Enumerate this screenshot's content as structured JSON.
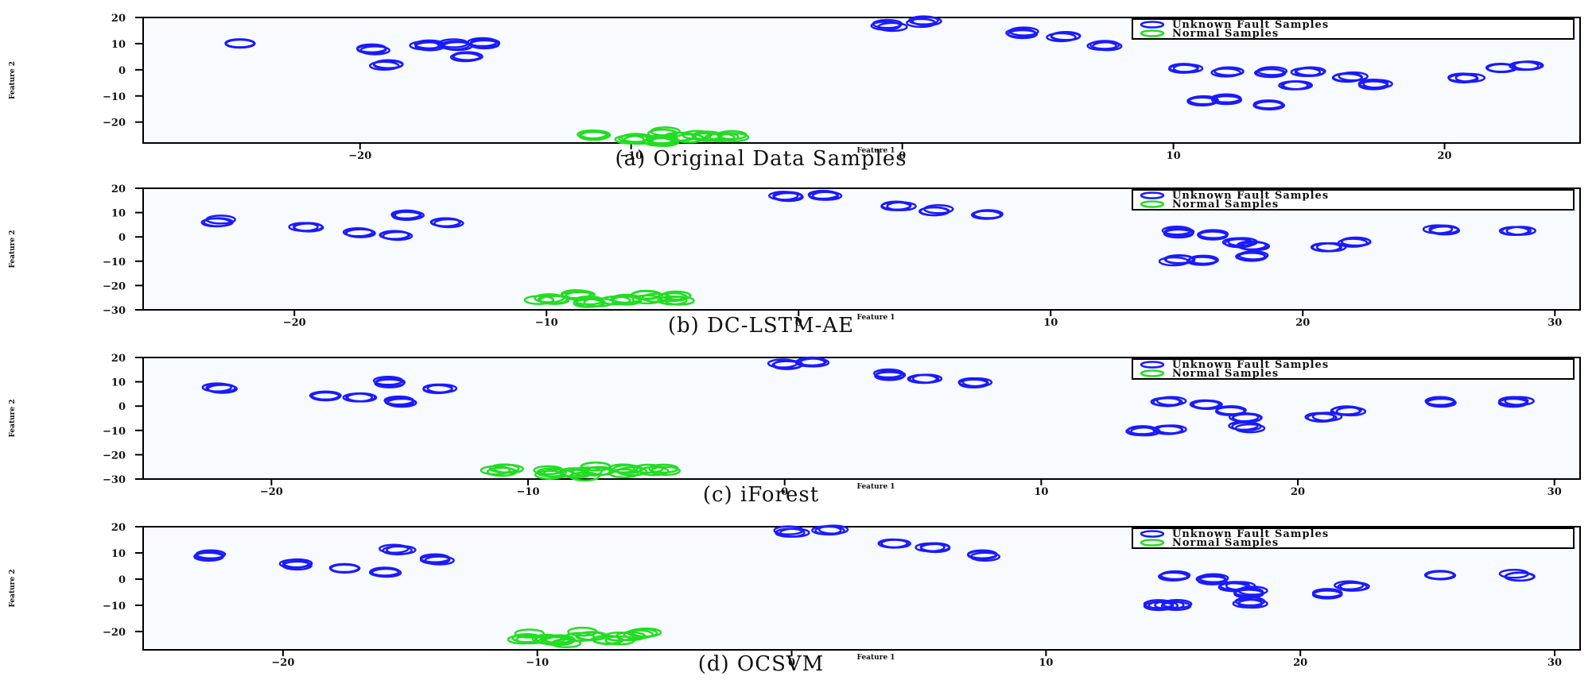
{
  "colors": {
    "fault": "#1a1aff",
    "normal": "#22dd22",
    "plot_bg": "#f7fbff",
    "axis": "#000000"
  },
  "legend_placement": "top-right",
  "chart_data": [
    {
      "type": "scatter",
      "caption": "(a)  Original Data Samples",
      "xlabel": "Feature 1",
      "ylabel": "Feature 2",
      "xlim": [
        -28,
        25
      ],
      "ylim": [
        -28,
        20
      ],
      "xticks": [
        -20,
        -10,
        0,
        10,
        20
      ],
      "xtick_labels": [
        "−20",
        "−10",
        "0",
        "10",
        "20"
      ],
      "yticks": [
        20,
        10,
        0,
        -10,
        -20
      ],
      "ytick_labels": [
        "20",
        "10",
        "0",
        "−10",
        "−20"
      ],
      "series": [
        {
          "name": "Unknown Fault Samples",
          "color": "#1a1aff",
          "points": [
            [
              -24.5,
              9.8
            ],
            [
              -19.5,
              7.8
            ],
            [
              -17.5,
              9.2
            ],
            [
              -16.5,
              9.6
            ],
            [
              -15.5,
              10.2
            ],
            [
              -16,
              5
            ],
            [
              -19,
              2
            ],
            [
              -0.5,
              17
            ],
            [
              0.8,
              18.5
            ],
            [
              4.5,
              14.2
            ],
            [
              6,
              12.5
            ],
            [
              7.5,
              9.5
            ],
            [
              10.5,
              0.5
            ],
            [
              12,
              -0.5
            ],
            [
              13.5,
              -1
            ],
            [
              15,
              -1.2
            ],
            [
              14.5,
              -6.5
            ],
            [
              12,
              -11
            ],
            [
              13.5,
              -13.5
            ],
            [
              11,
              -12
            ],
            [
              16.5,
              -2.5
            ],
            [
              17.5,
              -5.5
            ],
            [
              20.8,
              -2.8
            ],
            [
              22,
              0.5
            ],
            [
              23,
              1.2
            ]
          ]
        },
        {
          "name": "Normal Samples",
          "color": "#22dd22",
          "points": [
            [
              -11.5,
              -25
            ],
            [
              -10,
              -26
            ],
            [
              -8.5,
              -24.5
            ],
            [
              -7.5,
              -26
            ],
            [
              -6.5,
              -25
            ],
            [
              -9,
              -27
            ]
          ]
        }
      ]
    },
    {
      "type": "scatter",
      "caption": "(b)  DC-LSTM-AE",
      "xlabel": "Feature 1",
      "ylabel": "Feature 2",
      "xlim": [
        -26,
        31
      ],
      "ylim": [
        -30,
        20
      ],
      "xticks": [
        -20,
        -10,
        0,
        10,
        20,
        30
      ],
      "xtick_labels": [
        "−20",
        "−10",
        "0",
        "10",
        "20",
        "30"
      ],
      "yticks": [
        20,
        10,
        0,
        -10,
        -20,
        -30
      ],
      "ytick_labels": [
        "20",
        "10",
        "0",
        "−10",
        "−20",
        "−30"
      ],
      "series": [
        {
          "name": "Unknown Fault Samples",
          "color": "#1a1aff",
          "points": [
            [
              -23,
              6.5
            ],
            [
              -19.5,
              3.5
            ],
            [
              -17.5,
              2
            ],
            [
              -16,
              1
            ],
            [
              -15.5,
              9
            ],
            [
              -14,
              6
            ],
            [
              -0.5,
              16.5
            ],
            [
              1,
              17.5
            ],
            [
              4,
              13
            ],
            [
              5.5,
              11
            ],
            [
              7.5,
              9
            ],
            [
              15,
              2
            ],
            [
              16.5,
              1
            ],
            [
              17.5,
              -2
            ],
            [
              18,
              -4
            ],
            [
              16,
              -9.5
            ],
            [
              15,
              -9.5
            ],
            [
              18,
              -8
            ],
            [
              21,
              -4.5
            ],
            [
              22,
              -2
            ],
            [
              25.5,
              3
            ],
            [
              28.5,
              3
            ]
          ]
        },
        {
          "name": "Normal Samples",
          "color": "#22dd22",
          "points": [
            [
              -10,
              -26
            ],
            [
              -8.5,
              -24
            ],
            [
              -7,
              -26
            ],
            [
              -6,
              -24.5
            ],
            [
              -5,
              -25
            ],
            [
              -8,
              -27
            ]
          ]
        }
      ]
    },
    {
      "type": "scatter",
      "caption": "(c)  iForest",
      "xlabel": "Feature 1",
      "ylabel": "Feature 2",
      "xlim": [
        -25,
        31
      ],
      "ylim": [
        -30,
        20
      ],
      "xticks": [
        -20,
        -10,
        0,
        10,
        20,
        30
      ],
      "xtick_labels": [
        "−20",
        "−10",
        "0",
        "10",
        "20",
        "30"
      ],
      "yticks": [
        20,
        10,
        0,
        -10,
        -20,
        -30
      ],
      "ytick_labels": [
        "20",
        "10",
        "0",
        "−10",
        "−20",
        "−30"
      ],
      "series": [
        {
          "name": "Unknown Fault Samples",
          "color": "#1a1aff",
          "points": [
            [
              -22,
              7.5
            ],
            [
              -18,
              4.5
            ],
            [
              -16.5,
              3
            ],
            [
              -15,
              2
            ],
            [
              -15.5,
              10
            ],
            [
              -13.5,
              7
            ],
            [
              0,
              17.5
            ],
            [
              1,
              18.5
            ],
            [
              4,
              13
            ],
            [
              5.5,
              11.5
            ],
            [
              7.5,
              9.5
            ],
            [
              15,
              1.5
            ],
            [
              16.5,
              0.5
            ],
            [
              17.5,
              -2
            ],
            [
              18,
              -4.5
            ],
            [
              15,
              -9.5
            ],
            [
              14,
              -10
            ],
            [
              18,
              -8.5
            ],
            [
              21,
              -5
            ],
            [
              22,
              -2
            ],
            [
              25.5,
              2
            ],
            [
              28.5,
              2
            ]
          ]
        },
        {
          "name": "Normal Samples",
          "color": "#22dd22",
          "points": [
            [
              -11,
              -26.5
            ],
            [
              -9,
              -27
            ],
            [
              -7.5,
              -26
            ],
            [
              -6,
              -26.5
            ],
            [
              -5,
              -27
            ],
            [
              -8,
              -28
            ]
          ]
        }
      ]
    },
    {
      "type": "scatter",
      "caption": "(d)  OCSVM",
      "xlabel": "Feature 1",
      "ylabel": "Feature 2",
      "xlim": [
        -25.5,
        31
      ],
      "ylim": [
        -27,
        20
      ],
      "xticks": [
        -20,
        -10,
        0,
        10,
        20,
        30
      ],
      "xtick_labels": [
        "−20",
        "−10",
        "0",
        "10",
        "20",
        "30"
      ],
      "yticks": [
        20,
        10,
        0,
        -10,
        -20
      ],
      "ytick_labels": [
        "20",
        "10",
        "0",
        "−10",
        "−20"
      ],
      "series": [
        {
          "name": "Unknown Fault Samples",
          "color": "#1a1aff",
          "points": [
            [
              -23,
              9
            ],
            [
              -19.5,
              5.5
            ],
            [
              -17.5,
              4
            ],
            [
              -16,
              3
            ],
            [
              -15.5,
              11
            ],
            [
              -14,
              7.5
            ],
            [
              0,
              18
            ],
            [
              1.5,
              19
            ],
            [
              4,
              13.5
            ],
            [
              5.5,
              12
            ],
            [
              7.5,
              9
            ],
            [
              15,
              1
            ],
            [
              16.5,
              0
            ],
            [
              17.5,
              -2.5
            ],
            [
              18,
              -5
            ],
            [
              15,
              -10
            ],
            [
              14.5,
              -10
            ],
            [
              18,
              -9
            ],
            [
              21,
              -5.5
            ],
            [
              22,
              -2.5
            ],
            [
              25.5,
              1.5
            ],
            [
              28.5,
              1.5
            ]
          ]
        },
        {
          "name": "Normal Samples",
          "color": "#22dd22",
          "points": [
            [
              -10.5,
              -22
            ],
            [
              -9,
              -24
            ],
            [
              -8,
              -21
            ],
            [
              -7,
              -23
            ],
            [
              -6,
              -21.5
            ],
            [
              -9.5,
              -23.5
            ]
          ]
        }
      ]
    }
  ]
}
